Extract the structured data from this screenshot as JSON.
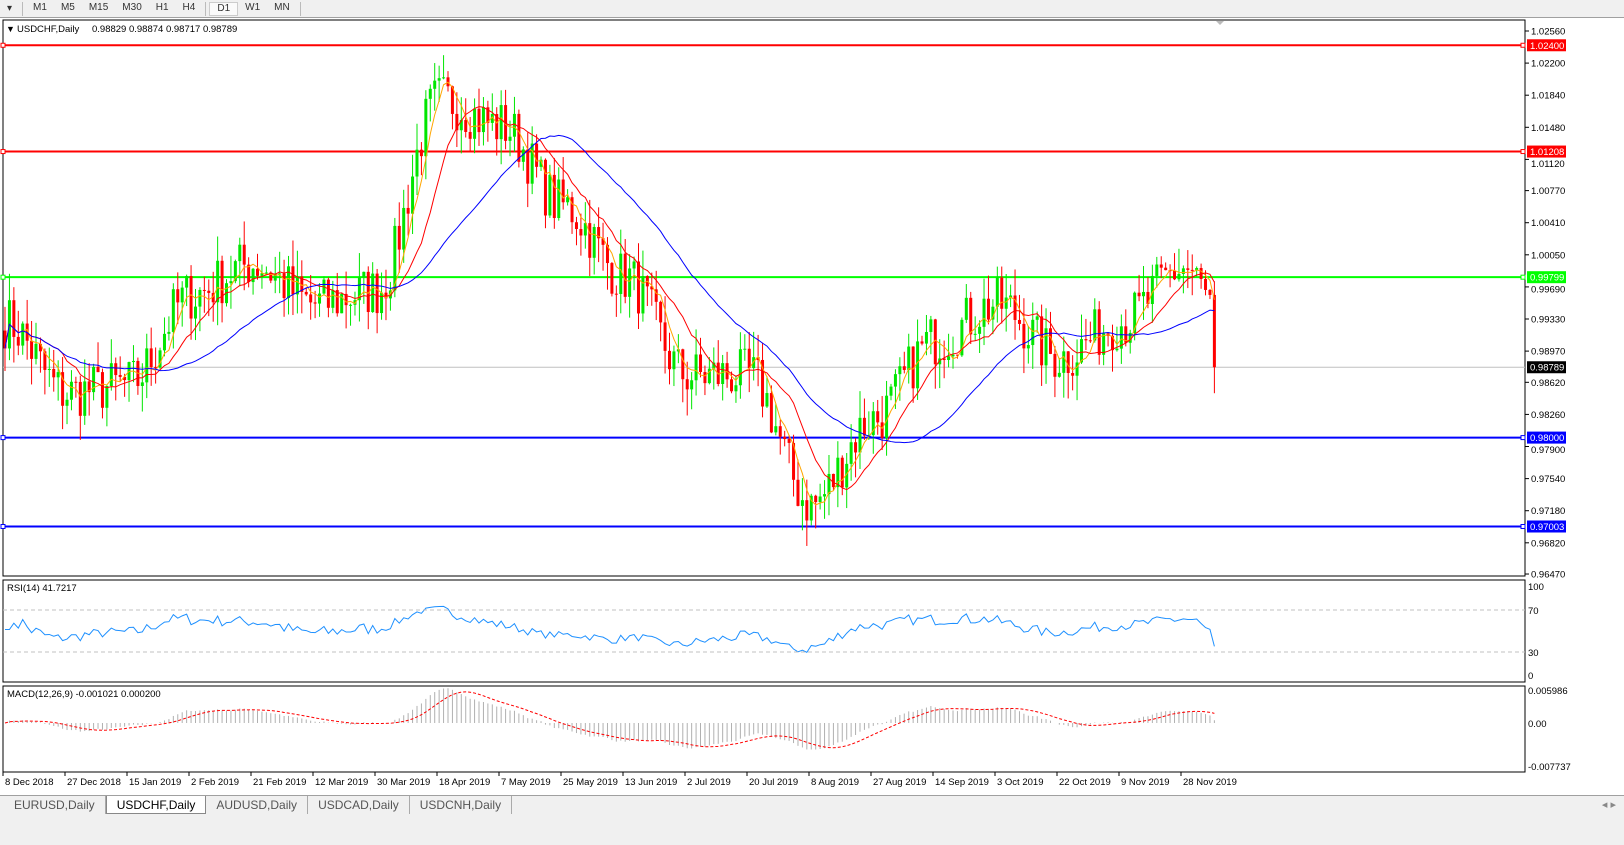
{
  "toolbar": {
    "timeframes": [
      "M1",
      "M5",
      "M15",
      "M30",
      "H1",
      "H4",
      "D1",
      "W1",
      "MN"
    ],
    "active": "D1"
  },
  "chart": {
    "header": "USDCHF,Daily",
    "ohlc": "0.98829 0.98874 0.98717 0.98789",
    "price_ticks": [
      "1.02560",
      "1.02200",
      "1.01840",
      "1.01480",
      "1.01120",
      "1.00770",
      "1.00410",
      "1.00050",
      "0.99690",
      "0.99330",
      "0.98970",
      "0.98620",
      "0.98260",
      "0.97900",
      "0.97540",
      "0.97180",
      "0.96820",
      "0.96470"
    ],
    "levels": [
      {
        "label": "1.02400",
        "color": "#ff0000"
      },
      {
        "label": "1.01208",
        "color": "#ff0000"
      },
      {
        "label": "0.99799",
        "color": "#00ff00"
      },
      {
        "label": "0.98000",
        "color": "#0000ff"
      },
      {
        "label": "0.97003",
        "color": "#0000ff"
      }
    ],
    "current_price": "0.98789",
    "date_labels": [
      "8 Dec 2018",
      "27 Dec 2018",
      "15 Jan 2019",
      "2 Feb 2019",
      "21 Feb 2019",
      "12 Mar 2019",
      "30 Mar 2019",
      "18 Apr 2019",
      "7 May 2019",
      "25 May 2019",
      "13 Jun 2019",
      "2 Jul 2019",
      "20 Jul 2019",
      "8 Aug 2019",
      "27 Aug 2019",
      "14 Sep 2019",
      "3 Oct 2019",
      "22 Oct 2019",
      "9 Nov 2019",
      "28 Nov 2019"
    ],
    "approx_closes": [
      0.993,
      0.985,
      0.986,
      0.996,
      0.9995,
      0.995,
      0.9965,
      1.018,
      1.015,
      1.006,
      0.998,
      0.987,
      0.987,
      0.9725,
      0.982,
      0.991,
      0.995,
      0.989,
      0.993,
      0.999,
      0.98789
    ],
    "colors": {
      "bull": "#00e600",
      "bear": "#ff0000",
      "ma_fast": "#ffa500",
      "ma_mid": "#ff0000",
      "ma_slow": "#0000ff"
    }
  },
  "rsi": {
    "label": "RSI(14) 41.7217",
    "ticks": [
      "100",
      "70",
      "30",
      "0"
    ],
    "color": "#1e90ff"
  },
  "macd": {
    "label": "MACD(12,26,9) -0.001021 0.000200",
    "ticks": [
      "0.005986",
      "0.00",
      "-0.007737"
    ]
  },
  "tabs": [
    {
      "label": "EURUSD,Daily",
      "active": false
    },
    {
      "label": "USDCHF,Daily",
      "active": true
    },
    {
      "label": "AUDUSD,Daily",
      "active": false
    },
    {
      "label": "USDCAD,Daily",
      "active": false
    },
    {
      "label": "USDCNH,Daily",
      "active": false
    }
  ]
}
